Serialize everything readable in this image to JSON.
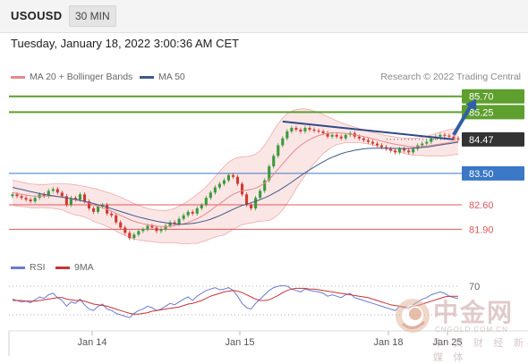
{
  "header": {
    "symbol": "USOUSD",
    "interval": "30 MIN"
  },
  "datetime": "Tuesday, January 18, 2022 3:00:36 AM CET",
  "legend": {
    "items": [
      {
        "label": "MA 20 + Bollinger Bands",
        "color": "#e8888a"
      },
      {
        "label": "MA 50",
        "color": "#3e5a8a"
      }
    ],
    "credit": "Research © 2022 Trading Central"
  },
  "rsi_legend": {
    "items": [
      {
        "label": "RSI",
        "color": "#6a7bd0"
      },
      {
        "label": "9MA",
        "color": "#c8333a"
      }
    ]
  },
  "watermark": {
    "cn": "中金网",
    "url": "CNGOLD.COM.CN",
    "sub": "中 文 财 经 新 媒 体"
  },
  "chart_data": {
    "type": "candlestick",
    "x_ticks": [
      "Jan 14",
      "Jan 15",
      "Jan 18",
      "Jan 25"
    ],
    "price_ylim": [
      81.4,
      86.0
    ],
    "levels": [
      {
        "label": "85.70",
        "value": 85.7,
        "kind": "target",
        "color": "#5e9f2e"
      },
      {
        "label": "85.25",
        "value": 85.25,
        "kind": "target",
        "color": "#5e9f2e"
      },
      {
        "label": "84.47",
        "value": 84.47,
        "kind": "last",
        "color": "#333333"
      },
      {
        "label": "83.50",
        "value": 83.5,
        "kind": "pivot",
        "color": "#3b78c6"
      },
      {
        "label": "82.60",
        "value": 82.6,
        "kind": "support",
        "color": "#e0575a"
      },
      {
        "label": "81.90",
        "value": 81.9,
        "kind": "support",
        "color": "#e0575a"
      }
    ],
    "close": [
      82.9,
      82.85,
      82.8,
      82.75,
      82.7,
      82.8,
      82.9,
      82.85,
      83.0,
      83.05,
      82.95,
      82.85,
      82.6,
      82.8,
      82.75,
      82.9,
      82.7,
      82.5,
      82.4,
      82.55,
      82.6,
      82.35,
      82.3,
      82.1,
      81.95,
      81.8,
      81.65,
      81.75,
      81.85,
      81.9,
      82.0,
      81.95,
      81.85,
      81.9,
      82.0,
      82.1,
      82.05,
      82.2,
      82.3,
      82.4,
      82.35,
      82.5,
      82.6,
      82.8,
      82.95,
      83.1,
      83.2,
      83.3,
      83.45,
      83.4,
      83.2,
      82.9,
      82.6,
      82.5,
      82.8,
      83.0,
      83.3,
      83.7,
      84.0,
      84.3,
      84.5,
      84.7,
      84.8,
      84.75,
      84.7,
      84.8,
      84.75,
      84.72,
      84.7,
      84.65,
      84.55,
      84.6,
      84.55,
      84.5,
      84.6,
      84.65,
      84.55,
      84.5,
      84.45,
      84.4,
      84.35,
      84.3,
      84.25,
      84.2,
      84.15,
      84.1,
      84.2,
      84.15,
      84.1,
      84.2,
      84.3,
      84.35,
      84.4,
      84.5,
      84.55,
      84.6,
      84.58,
      84.55,
      84.5,
      84.47
    ],
    "ma20": [
      82.95,
      82.92,
      82.9,
      82.88,
      82.86,
      82.85,
      82.85,
      82.85,
      82.85,
      82.85,
      82.84,
      82.83,
      82.8,
      82.77,
      82.74,
      82.72,
      82.69,
      82.65,
      82.6,
      82.56,
      82.52,
      82.47,
      82.42,
      82.36,
      82.3,
      82.24,
      82.18,
      82.13,
      82.09,
      82.06,
      82.03,
      82.01,
      81.99,
      81.98,
      81.98,
      81.99,
      82.01,
      82.03,
      82.06,
      82.1,
      82.15,
      82.2,
      82.27,
      82.35,
      82.44,
      82.54,
      82.63,
      82.72,
      82.82,
      82.9,
      82.96,
      83.0,
      83.02,
      83.04,
      83.08,
      83.14,
      83.22,
      83.33,
      83.47,
      83.62,
      83.77,
      83.92,
      84.06,
      84.19,
      84.3,
      84.39,
      84.47,
      84.53,
      84.58,
      84.62,
      84.64,
      84.66,
      84.66,
      84.65,
      84.64,
      84.62,
      84.6,
      84.58,
      84.55,
      84.52,
      84.49,
      84.46,
      84.42,
      84.39,
      84.36,
      84.33,
      84.31,
      84.29,
      84.27,
      84.26,
      84.26,
      84.27,
      84.28,
      84.3,
      84.32,
      84.34,
      84.36,
      84.38,
      84.4,
      84.42
    ],
    "ma50": [
      83.1,
      83.07,
      83.04,
      83.01,
      82.98,
      82.95,
      82.92,
      82.9,
      82.88,
      82.86,
      82.84,
      82.82,
      82.8,
      82.78,
      82.76,
      82.73,
      82.7,
      82.67,
      82.64,
      82.6,
      82.57,
      82.53,
      82.49,
      82.45,
      82.41,
      82.37,
      82.33,
      82.29,
      82.25,
      82.22,
      82.19,
      82.16,
      82.13,
      82.11,
      82.09,
      82.07,
      82.06,
      82.05,
      82.05,
      82.06,
      82.07,
      82.09,
      82.12,
      82.15,
      82.19,
      82.24,
      82.29,
      82.35,
      82.41,
      82.47,
      82.53,
      82.58,
      82.62,
      82.66,
      82.7,
      82.75,
      82.8,
      82.86,
      82.93,
      83.0,
      83.08,
      83.16,
      83.25,
      83.34,
      83.43,
      83.52,
      83.6,
      83.68,
      83.76,
      83.83,
      83.9,
      83.96,
      84.01,
      84.06,
      84.1,
      84.13,
      84.16,
      84.18,
      84.2,
      84.21,
      84.22,
      84.22,
      84.22,
      84.22,
      84.22,
      84.21,
      84.21,
      84.21,
      84.21,
      84.22,
      84.23,
      84.24,
      84.25,
      84.27,
      84.29,
      84.31,
      84.33,
      84.35,
      84.37,
      84.39
    ],
    "bb_upper": [
      83.3,
      83.28,
      83.25,
      83.22,
      83.2,
      83.19,
      83.18,
      83.18,
      83.19,
      83.2,
      83.2,
      83.2,
      83.2,
      83.19,
      83.17,
      83.15,
      83.13,
      83.1,
      83.07,
      83.04,
      83.0,
      82.96,
      82.92,
      82.87,
      82.82,
      82.76,
      82.7,
      82.64,
      82.58,
      82.54,
      82.5,
      82.47,
      82.45,
      82.44,
      82.44,
      82.46,
      82.5,
      82.56,
      82.63,
      82.71,
      82.8,
      82.9,
      83.0,
      83.12,
      83.25,
      83.4,
      83.55,
      83.7,
      83.82,
      83.9,
      83.95,
      83.97,
      83.98,
      84.0,
      84.05,
      84.15,
      84.3,
      84.5,
      84.72,
      84.92,
      85.08,
      85.2,
      85.28,
      85.32,
      85.34,
      85.34,
      85.32,
      85.28,
      85.24,
      85.18,
      85.12,
      85.06,
      85.0,
      84.95,
      84.9,
      84.86,
      84.82,
      84.78,
      84.74,
      84.7,
      84.67,
      84.64,
      84.61,
      84.58,
      84.56,
      84.54,
      84.52,
      84.51,
      84.5,
      84.5,
      84.51,
      84.53,
      84.56,
      84.6,
      84.64,
      84.68,
      84.72,
      84.75,
      84.77,
      84.79
    ],
    "bb_lower": [
      82.6,
      82.56,
      82.55,
      82.54,
      82.52,
      82.51,
      82.52,
      82.52,
      82.51,
      82.5,
      82.48,
      82.46,
      82.4,
      82.35,
      82.31,
      82.29,
      82.25,
      82.2,
      82.13,
      82.08,
      82.04,
      81.98,
      81.92,
      81.85,
      81.78,
      81.72,
      81.66,
      81.62,
      81.6,
      81.58,
      81.56,
      81.55,
      81.53,
      81.52,
      81.52,
      81.52,
      81.52,
      81.5,
      81.49,
      81.49,
      81.5,
      81.5,
      81.54,
      81.58,
      81.63,
      81.68,
      81.71,
      81.74,
      81.82,
      81.9,
      81.97,
      82.03,
      82.06,
      82.08,
      82.11,
      82.13,
      82.14,
      82.16,
      82.22,
      82.32,
      82.46,
      82.64,
      82.84,
      83.06,
      83.26,
      83.44,
      83.62,
      83.78,
      83.92,
      84.06,
      84.16,
      84.26,
      84.32,
      84.35,
      84.38,
      84.38,
      84.38,
      84.38,
      84.36,
      84.34,
      84.31,
      84.28,
      84.23,
      84.2,
      84.16,
      84.12,
      84.1,
      84.07,
      84.04,
      84.02,
      84.01,
      84.01,
      84.0,
      84.0,
      84.0,
      84.0,
      84.0,
      84.01,
      84.03,
      84.05
    ],
    "trendline": {
      "from": {
        "index": 60,
        "value": 84.98
      },
      "to": {
        "index": 98,
        "value": 84.47
      }
    },
    "projection": {
      "from": {
        "index": 98,
        "value": 84.6
      },
      "to": {
        "index": 103,
        "value": 85.62
      }
    },
    "rsi": {
      "reference_level": 70,
      "reference_label": "70",
      "ylim": [
        20,
        80
      ],
      "rsi": [
        52,
        50,
        48,
        49,
        47,
        51,
        55,
        53,
        58,
        60,
        54,
        50,
        42,
        48,
        46,
        52,
        44,
        38,
        36,
        42,
        45,
        38,
        36,
        32,
        30,
        28,
        26,
        32,
        36,
        38,
        42,
        40,
        36,
        38,
        42,
        46,
        44,
        48,
        52,
        55,
        50,
        56,
        60,
        64,
        66,
        68,
        65,
        66,
        68,
        64,
        56,
        46,
        40,
        38,
        46,
        52,
        58,
        64,
        68,
        70,
        71,
        70,
        66,
        64,
        62,
        66,
        64,
        63,
        62,
        60,
        56,
        58,
        56,
        54,
        58,
        60,
        54,
        52,
        50,
        48,
        46,
        44,
        42,
        40,
        38,
        36,
        42,
        40,
        38,
        44,
        48,
        52,
        54,
        58,
        60,
        62,
        60,
        56,
        54,
        53
      ],
      "ma9": [
        50,
        50,
        50,
        49,
        49,
        49,
        50,
        51,
        52,
        53,
        54,
        54,
        52,
        51,
        50,
        50,
        49,
        47,
        45,
        44,
        43,
        42,
        40,
        38,
        36,
        34,
        32,
        31,
        31,
        32,
        33,
        35,
        36,
        37,
        38,
        39,
        40,
        41,
        43,
        45,
        46,
        48,
        50,
        53,
        56,
        58,
        60,
        62,
        63,
        64,
        63,
        61,
        58,
        55,
        52,
        50,
        50,
        51,
        54,
        57,
        61,
        64,
        66,
        67,
        67,
        67,
        66,
        66,
        65,
        64,
        63,
        62,
        61,
        60,
        59,
        58,
        57,
        56,
        55,
        54,
        52,
        50,
        48,
        46,
        44,
        43,
        42,
        41,
        41,
        42,
        43,
        45,
        47,
        49,
        51,
        53,
        55,
        56,
        56,
        56
      ]
    }
  }
}
